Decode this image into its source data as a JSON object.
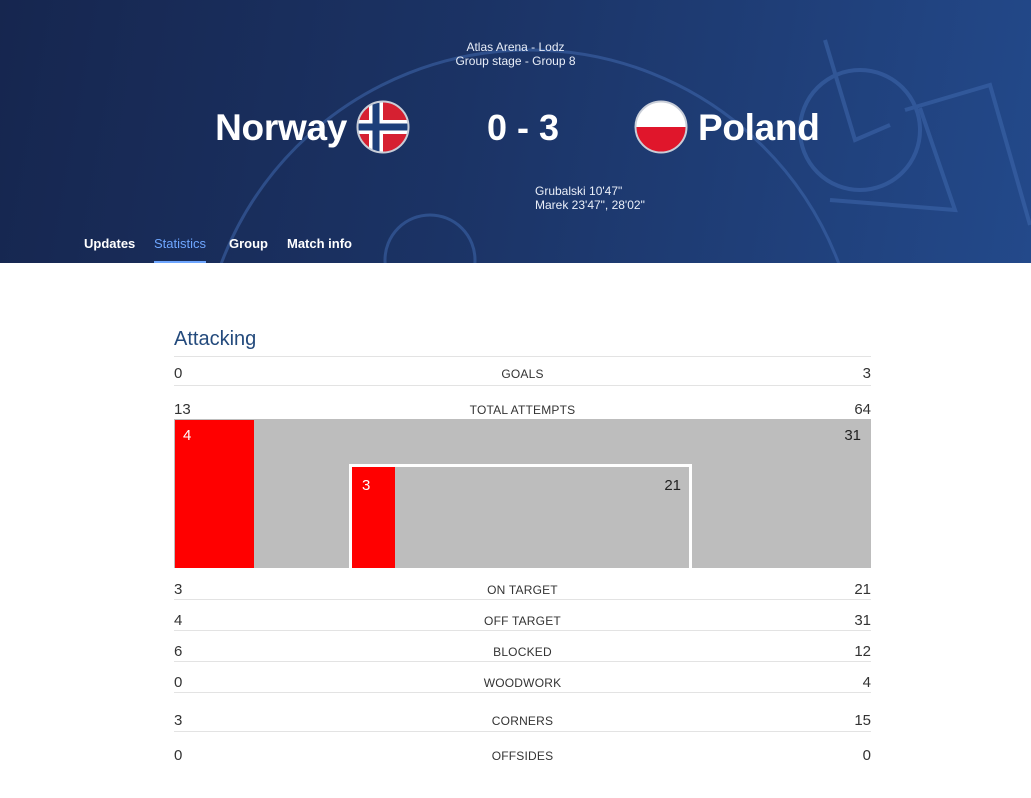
{
  "match": {
    "venue": "Atlas Arena - Lodz",
    "stage": "Group stage - Group 8",
    "home_team": "Norway",
    "away_team": "Poland",
    "score": "0 - 3",
    "scorers": [
      "Grubalski 10'47\"",
      "Marek 23'47\", 28'02\""
    ],
    "home_flag": "norway-flag",
    "away_flag": "poland-flag"
  },
  "tabs": [
    {
      "label": "Updates",
      "active": false
    },
    {
      "label": "Statistics",
      "active": true
    },
    {
      "label": "Group",
      "active": false
    },
    {
      "label": "Match info",
      "active": false
    }
  ],
  "section": {
    "title": "Attacking"
  },
  "goal_graphic": {
    "off_target_home": "4",
    "off_target_away": "31",
    "on_target_home": "3",
    "on_target_away": "21"
  },
  "stats": [
    {
      "label": "GOALS",
      "home": "0",
      "away": "3"
    },
    {
      "label": "TOTAL ATTEMPTS",
      "home": "13",
      "away": "64"
    },
    {
      "label": "ON TARGET",
      "home": "3",
      "away": "21"
    },
    {
      "label": "OFF TARGET",
      "home": "4",
      "away": "31"
    },
    {
      "label": "BLOCKED",
      "home": "6",
      "away": "12"
    },
    {
      "label": "WOODWORK",
      "home": "0",
      "away": "4"
    },
    {
      "label": "CORNERS",
      "home": "3",
      "away": "15"
    },
    {
      "label": "OFFSIDES",
      "home": "0",
      "away": "0"
    }
  ],
  "colors": {
    "header_dark": "#16264f",
    "header_light": "#23498a",
    "active_tab": "#6ea6ff",
    "bar_red": "#ff0000",
    "goal_bg": "#bdbdbd",
    "section_title": "#234a7c"
  }
}
